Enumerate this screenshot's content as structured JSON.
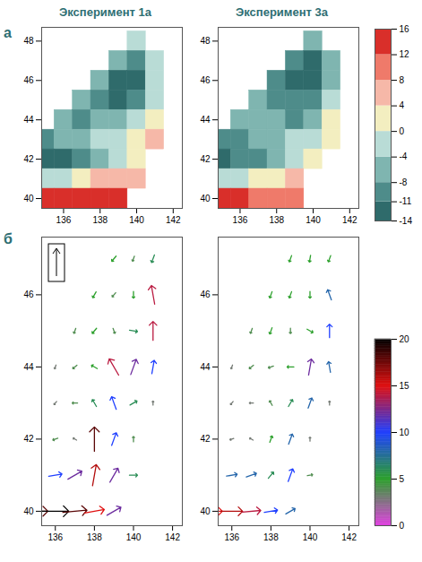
{
  "chart_data": [
    {
      "type": "heatmap",
      "title": "Эксперимент 1а",
      "annotation": "а",
      "xlim": [
        134.8,
        142.5
      ],
      "xticks": [
        136,
        138,
        140,
        142
      ],
      "ylim": [
        39.5,
        48.7
      ],
      "yticks": [
        40,
        42,
        44,
        46,
        48
      ],
      "grid": false,
      "lon": [
        135,
        136,
        137,
        138,
        139,
        140,
        141
      ],
      "lat": [
        48,
        47,
        46,
        45,
        44,
        43,
        42,
        41,
        40
      ],
      "values": [
        [
          null,
          null,
          null,
          null,
          null,
          -2,
          null
        ],
        [
          null,
          null,
          null,
          null,
          -6,
          -9,
          -2
        ],
        [
          null,
          null,
          null,
          -6,
          -12,
          -12,
          -2
        ],
        [
          null,
          null,
          -6,
          -9,
          -12,
          -9,
          -2
        ],
        [
          null,
          -6,
          -9,
          -6,
          -6,
          -2,
          2
        ],
        [
          -9,
          -6,
          -6,
          -2,
          -2,
          2,
          6
        ],
        [
          -12,
          -12,
          -9,
          -6,
          -2,
          2,
          null
        ],
        [
          -2,
          -2,
          2,
          6,
          6,
          6,
          null
        ],
        [
          14,
          14,
          14,
          14,
          14,
          null,
          null
        ]
      ]
    },
    {
      "type": "heatmap",
      "title": "Эксперимент 3а",
      "xlim": [
        134.8,
        142.5
      ],
      "xticks": [
        136,
        138,
        140,
        142
      ],
      "ylim": [
        39.5,
        48.7
      ],
      "yticks": [
        40,
        42,
        44,
        46,
        48
      ],
      "grid": false,
      "lon": [
        135,
        136,
        137,
        138,
        139,
        140,
        141
      ],
      "lat": [
        48,
        47,
        46,
        45,
        44,
        43,
        42,
        41,
        40
      ],
      "values": [
        [
          null,
          null,
          null,
          null,
          null,
          -6,
          null
        ],
        [
          null,
          null,
          null,
          null,
          -9,
          -12,
          -6
        ],
        [
          null,
          null,
          null,
          -9,
          -12,
          -12,
          -6
        ],
        [
          null,
          null,
          -6,
          -9,
          -9,
          -9,
          -2
        ],
        [
          null,
          -6,
          -6,
          -6,
          -9,
          -6,
          2
        ],
        [
          -9,
          -9,
          -6,
          -6,
          -2,
          -2,
          2
        ],
        [
          -12,
          -9,
          -9,
          -6,
          -2,
          2,
          null
        ],
        [
          -2,
          -2,
          2,
          2,
          6,
          null,
          null
        ],
        [
          14,
          14,
          10,
          10,
          10,
          null,
          null
        ]
      ]
    },
    {
      "type": "colorbar",
      "range": [
        -14,
        16
      ],
      "ticks": [
        -14,
        -11,
        -8,
        -4,
        0,
        4,
        8,
        12,
        16
      ],
      "colors": [
        "#2f6b6b",
        "#4e8c8a",
        "#7fb5b0",
        "#b9dcd6",
        "#f3eec0",
        "#f6b8a8",
        "#ef7a6a",
        "#d92f2a"
      ]
    },
    {
      "type": "vector",
      "annotation": "б",
      "xlim": [
        135.3,
        142.5
      ],
      "xticks": [
        136,
        138,
        140,
        142
      ],
      "ylim": [
        39.6,
        47.6
      ],
      "yticks": [
        40,
        42,
        44,
        46
      ],
      "grid": false,
      "lon": [
        135,
        136,
        137,
        138,
        139,
        135,
        136,
        137,
        138,
        139,
        140,
        135,
        136,
        137,
        138,
        139,
        140,
        135,
        136,
        137,
        138,
        139,
        140,
        141,
        136,
        137,
        138,
        139,
        140,
        141,
        137,
        138,
        139,
        140,
        141,
        138,
        139,
        140,
        141,
        139,
        140,
        141
      ],
      "lat": [
        40,
        40,
        40,
        40,
        40,
        41,
        41,
        41,
        41,
        41,
        41,
        42,
        42,
        42,
        42,
        42,
        42,
        43,
        43,
        43,
        43,
        43,
        43,
        43,
        44,
        44,
        44,
        44,
        44,
        44,
        45,
        45,
        45,
        45,
        45,
        46,
        46,
        46,
        46,
        47,
        47,
        47
      ],
      "speed": [
        18,
        20,
        18,
        15,
        12,
        8,
        10,
        12,
        16,
        12,
        6,
        3,
        4,
        3,
        18,
        10,
        4,
        2,
        3,
        4,
        6,
        10,
        6,
        3,
        3,
        4,
        5,
        14,
        12,
        10,
        4,
        5,
        4,
        6,
        14,
        5,
        4,
        5,
        14,
        5,
        4,
        6
      ],
      "direction": [
        90,
        90,
        85,
        80,
        60,
        80,
        80,
        60,
        10,
        30,
        90,
        200,
        250,
        300,
        0,
        20,
        0,
        180,
        220,
        270,
        330,
        340,
        60,
        0,
        200,
        230,
        300,
        330,
        20,
        10,
        200,
        220,
        160,
        100,
        0,
        210,
        220,
        180,
        350,
        220,
        200,
        200
      ]
    },
    {
      "type": "vector",
      "xlim": [
        135.3,
        142.5
      ],
      "xticks": [
        136,
        138,
        140,
        142
      ],
      "ylim": [
        39.6,
        47.6
      ],
      "yticks": [
        40,
        42,
        44,
        46
      ],
      "grid": false,
      "lon": [
        135,
        136,
        137,
        138,
        139,
        135,
        136,
        137,
        138,
        139,
        140,
        135,
        136,
        137,
        138,
        139,
        140,
        135,
        136,
        137,
        138,
        139,
        140,
        141,
        136,
        137,
        138,
        139,
        140,
        141,
        137,
        138,
        139,
        140,
        141,
        138,
        139,
        140,
        141,
        139,
        140,
        141
      ],
      "lat": [
        40,
        40,
        40,
        40,
        40,
        41,
        41,
        41,
        41,
        41,
        41,
        42,
        42,
        42,
        42,
        42,
        42,
        43,
        43,
        43,
        43,
        43,
        43,
        43,
        44,
        44,
        44,
        44,
        44,
        44,
        45,
        45,
        45,
        45,
        45,
        46,
        46,
        46,
        46,
        47,
        47,
        47
      ],
      "speed": [
        15,
        16,
        14,
        10,
        8,
        6,
        8,
        8,
        6,
        10,
        4,
        3,
        3,
        3,
        5,
        8,
        3,
        2,
        3,
        3,
        4,
        6,
        8,
        3,
        3,
        4,
        4,
        5,
        12,
        8,
        4,
        5,
        4,
        5,
        10,
        5,
        5,
        5,
        8,
        5,
        5,
        5
      ],
      "direction": [
        90,
        90,
        85,
        80,
        60,
        80,
        80,
        70,
        40,
        20,
        80,
        200,
        250,
        300,
        20,
        20,
        0,
        180,
        220,
        270,
        330,
        30,
        20,
        0,
        200,
        230,
        250,
        270,
        10,
        350,
        200,
        200,
        180,
        120,
        0,
        200,
        200,
        180,
        340,
        200,
        190,
        200
      ]
    },
    {
      "type": "colorbar",
      "range": [
        0,
        20
      ],
      "ticks": [
        0,
        5,
        10,
        15,
        20
      ],
      "colors": [
        "#e040e0",
        "#2ca02c",
        "#2040ff",
        "#e01010",
        "#000000"
      ]
    }
  ]
}
